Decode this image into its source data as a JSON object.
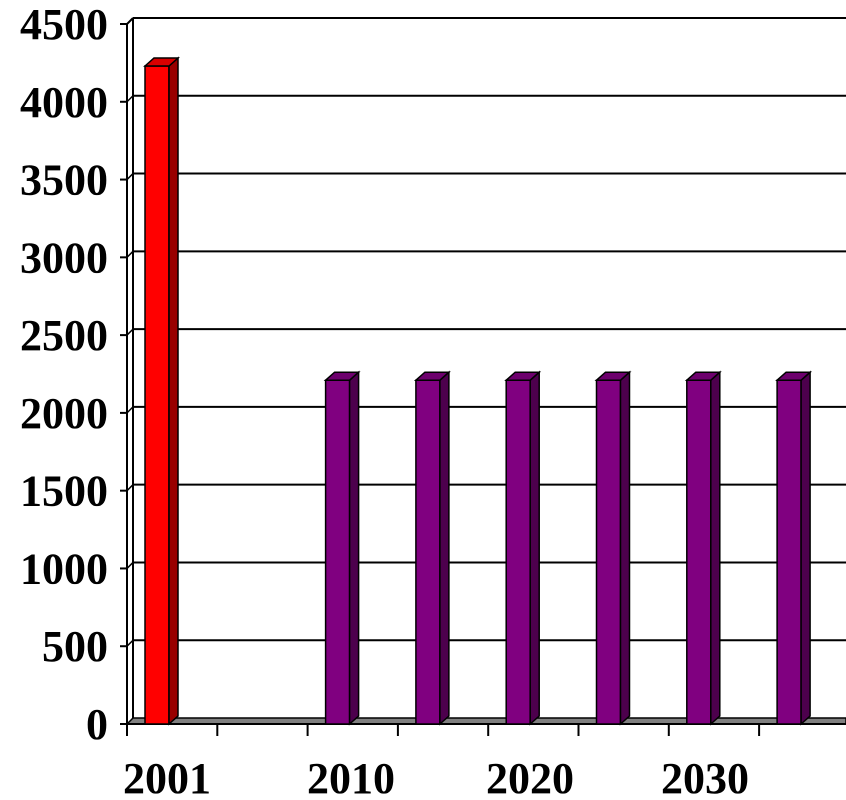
{
  "chart_data": {
    "type": "bar",
    "categories": [
      "2001",
      "",
      "",
      "",
      "",
      "",
      "",
      ""
    ],
    "values": [
      4230,
      null,
      2210,
      2210,
      2210,
      2210,
      2210,
      2210
    ],
    "ylim": [
      0,
      4500
    ],
    "yticks": [
      "0",
      "500",
      "1000",
      "1500",
      "2000",
      "2500",
      "3000",
      "3500",
      "4000",
      "4500"
    ],
    "xtick_labels": [
      "2001",
      "2010",
      "2020",
      "2030"
    ],
    "grid": true,
    "style": "3d-column",
    "colors": {
      "first_bar": "#ff0000",
      "other_bars": "#800080",
      "gridline": "#000000",
      "floor": "#808080"
    }
  }
}
